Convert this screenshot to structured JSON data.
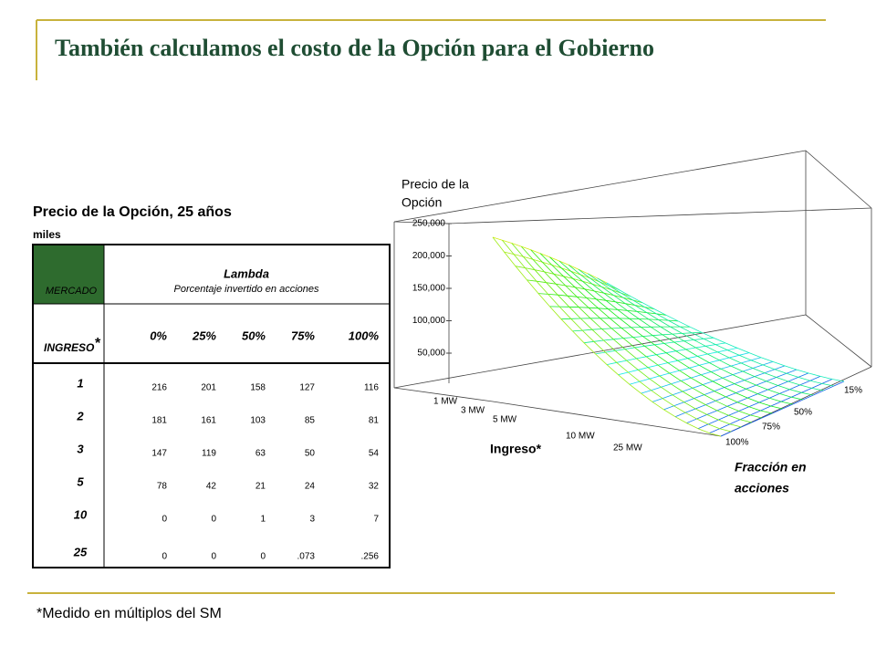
{
  "title": "También calculamos el costo de la Opción para el Gobierno",
  "table": {
    "caption": "Precio de la Opción, 25 años",
    "units": "miles",
    "corner": "MERCADO",
    "group": "Lambda",
    "group_sub": "Porcentaje invertido en acciones",
    "row_header": "INGRESO",
    "row_header_mark": "*",
    "columns": [
      "0%",
      "25%",
      "50%",
      "75%",
      "100%"
    ],
    "rows": [
      {
        "label": "1",
        "values": [
          216,
          201,
          158,
          127,
          116
        ]
      },
      {
        "label": "2",
        "values": [
          181,
          161,
          103,
          85,
          81
        ]
      },
      {
        "label": "3",
        "values": [
          147,
          119,
          63,
          50,
          54
        ]
      },
      {
        "label": "5",
        "values": [
          78,
          42,
          21,
          24,
          32
        ]
      },
      {
        "label": "10",
        "values": [
          0,
          0,
          1,
          3,
          7
        ]
      },
      {
        "label": "25",
        "values": [
          0,
          0,
          0,
          ".073",
          ".256"
        ]
      }
    ]
  },
  "plot": {
    "z_label_1": "Precio de la",
    "z_label_2": "Opción",
    "z_ticks": [
      "250,000",
      "200,000",
      "150,000",
      "100,000",
      "50,000"
    ],
    "x_label": "Ingreso*",
    "x_ticks": [
      "1 MW",
      "3 MW",
      "5 MW",
      "10 MW",
      "25 MW"
    ],
    "y_label_1": "Fracción en",
    "y_label_2": "acciones",
    "y_ticks": [
      "15%",
      "50%",
      "75%",
      "100%"
    ]
  },
  "footnote": "*Medido en múltiplos del SM"
}
